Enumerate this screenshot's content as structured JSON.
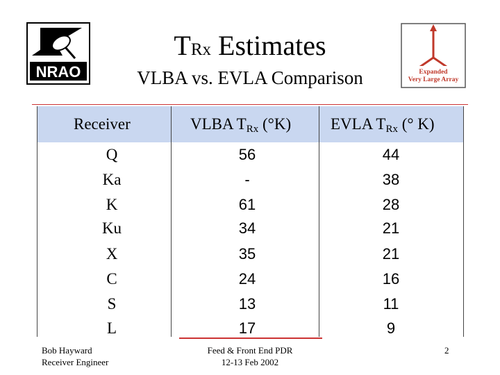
{
  "logos": {
    "nrao": "NRAO",
    "evla_line1": "Expanded",
    "evla_line2": "Very Large Array"
  },
  "title": {
    "main": "T",
    "sub": "Rx",
    "rest": " Estimates"
  },
  "subtitle": "VLBA vs. EVLA Comparison",
  "table": {
    "headers": {
      "receiver": "Receiver",
      "vlba_prefix": "VLBA   T",
      "vlba_sub": "Rx",
      "vlba_suffix": " (°K)",
      "evla_prefix": "EVLA   T",
      "evla_sub": "Rx",
      "evla_suffix": " (° K)"
    },
    "rows": [
      {
        "receiver": "Q",
        "vlba": "56",
        "evla": "44"
      },
      {
        "receiver": "Ka",
        "vlba": "-",
        "evla": "38"
      },
      {
        "receiver": "K",
        "vlba": "61",
        "evla": "28"
      },
      {
        "receiver": "Ku",
        "vlba": "34",
        "evla": "21"
      },
      {
        "receiver": "X",
        "vlba": "35",
        "evla": "21"
      },
      {
        "receiver": "C",
        "vlba": "24",
        "evla": "16"
      },
      {
        "receiver": "S",
        "vlba": "13",
        "evla": "11"
      },
      {
        "receiver": "L",
        "vlba": "17",
        "evla": "9"
      }
    ]
  },
  "footer": {
    "author": "Bob Hayward",
    "role": "Receiver Engineer",
    "event": "Feed & Front End PDR",
    "date": "12-13 Feb 2002",
    "page": "2"
  },
  "colors": {
    "header_band": "#c9d7f0",
    "rule": "#cc3333",
    "evla_red": "#c0392b"
  }
}
